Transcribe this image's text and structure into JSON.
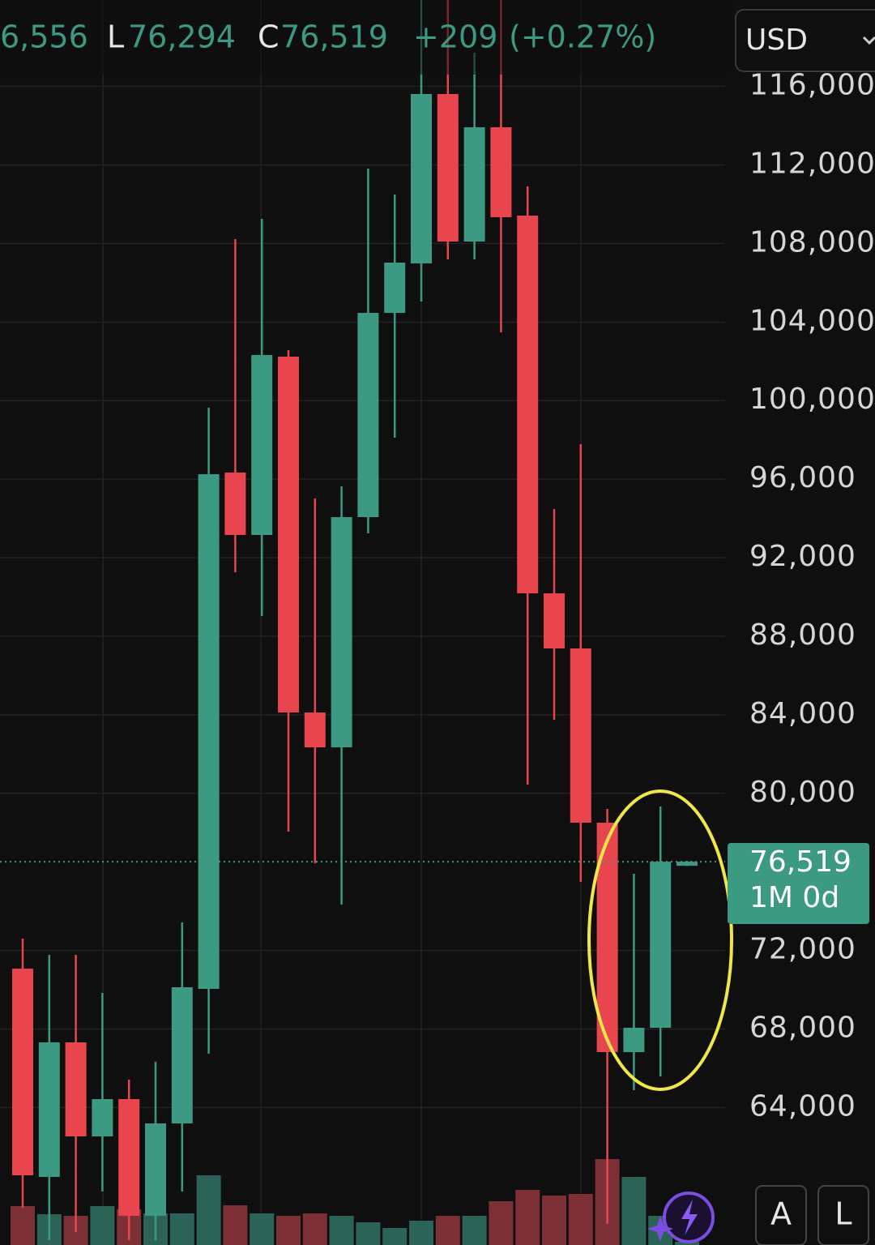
{
  "header": {
    "high_partial": "6,556",
    "low_label": "L",
    "low": "76,294",
    "close_label": "C",
    "close": "76,519",
    "change": "+209",
    "change_pct": "(+0.27%)"
  },
  "currency": "USD",
  "price_tag": {
    "price": "76,519",
    "countdown": "1M 0d"
  },
  "buttons": [
    "A",
    "L"
  ],
  "chart_data": {
    "type": "candlestick",
    "up_color": "#3c9a82",
    "down_color": "#e8454f",
    "volume_up_color": "#2b6457",
    "volume_down_color": "#7c3035",
    "ylim": [
      57000,
      120400
    ],
    "yticks": [
      {
        "value": 116000,
        "label": "116,000"
      },
      {
        "value": 112000,
        "label": "112,000"
      },
      {
        "value": 108000,
        "label": "108,000"
      },
      {
        "value": 104000,
        "label": "104,000"
      },
      {
        "value": 100000,
        "label": "100,000"
      },
      {
        "value": 96000,
        "label": "96,000"
      },
      {
        "value": 92000,
        "label": "92,000"
      },
      {
        "value": 88000,
        "label": "88,000"
      },
      {
        "value": 84000,
        "label": "84,000"
      },
      {
        "value": 80000,
        "label": "80,000"
      },
      {
        "value": 72000,
        "label": "72,000"
      },
      {
        "value": 68000,
        "label": "68,000"
      },
      {
        "value": 64000,
        "label": "64,000"
      }
    ],
    "grid": true,
    "current_price": 76519,
    "open": [
      71075,
      60467,
      67319,
      62531,
      64430,
      58486,
      63191,
      70043,
      96336,
      93158,
      102238,
      84118,
      82344,
      94066,
      104467,
      106986,
      115612,
      108100,
      113920,
      109421,
      90186,
      87379,
      78505,
      66824,
      68062,
      76310
    ],
    "high": [
      72602,
      71777,
      71777,
      69837,
      65420,
      66328,
      73428,
      99638,
      108224,
      109255,
      102569,
      95015,
      95634,
      111815,
      110494,
      120400,
      120400,
      117717,
      120400,
      110907,
      94477,
      97781,
      79207,
      75904,
      79330,
      76556
    ],
    "low": [
      58899,
      57248,
      57660,
      59724,
      57248,
      57248,
      59724,
      66741,
      91259,
      89030,
      78051,
      76441,
      74336,
      93240,
      98111,
      105045,
      107192,
      107192,
      103477,
      80445,
      83747,
      75492,
      58073,
      64884,
      65585,
      76294
    ],
    "close": [
      60550,
      67319,
      62531,
      64430,
      58486,
      63191,
      70126,
      96253,
      93158,
      102321,
      84118,
      82344,
      94066,
      104467,
      107027,
      115612,
      108100,
      113920,
      109338,
      90186,
      87379,
      78505,
      66824,
      68062,
      76519,
      76519
    ],
    "volume": [
      48,
      38,
      36,
      48,
      44,
      39,
      39,
      86,
      49,
      39,
      36,
      39,
      36,
      28,
      21,
      30,
      36,
      36,
      54,
      68,
      61,
      63,
      106,
      84,
      36,
      4
    ],
    "volume_lim": [
      0,
      110
    ]
  }
}
